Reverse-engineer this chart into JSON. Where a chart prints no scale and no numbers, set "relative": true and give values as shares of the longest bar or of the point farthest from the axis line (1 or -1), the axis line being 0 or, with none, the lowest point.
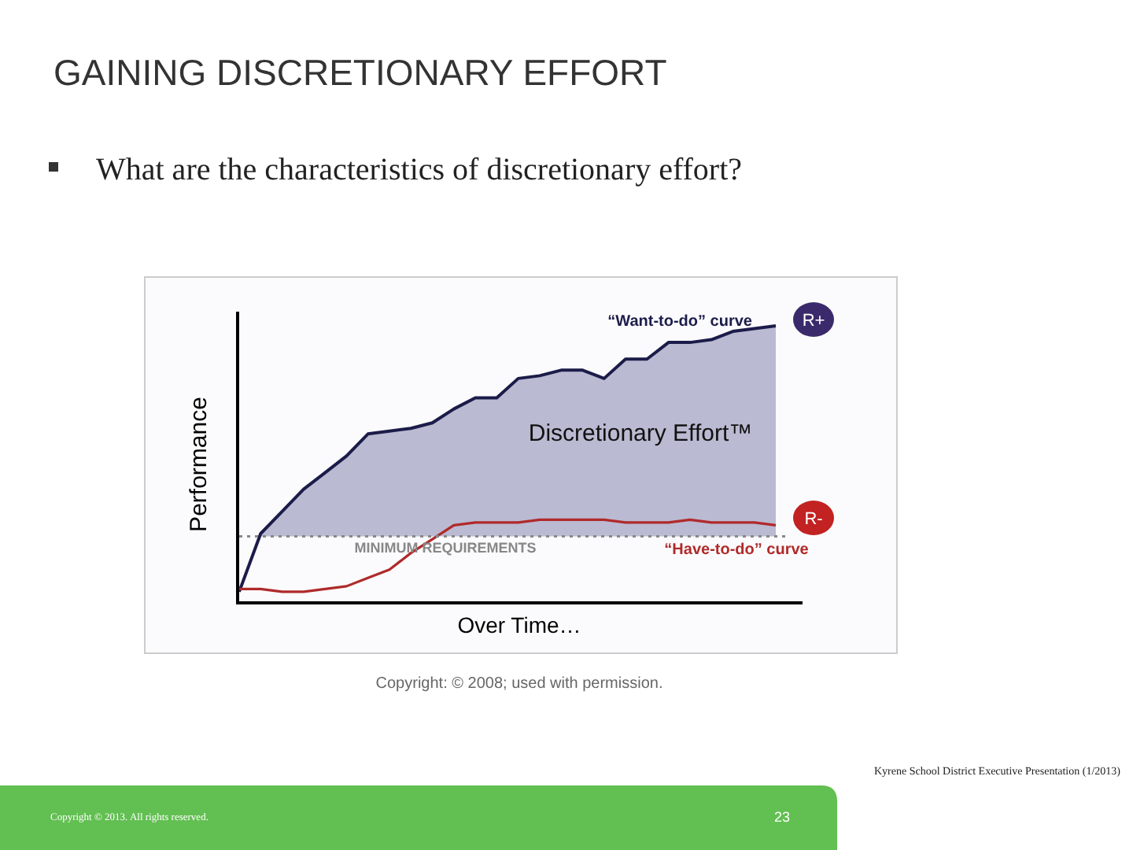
{
  "chart_data": {
    "type": "line",
    "title": "GAINING DISCRETIONARY EFFORT",
    "subtitle": "What are the characteristics of discretionary effort?",
    "xlabel": "Over Time…",
    "ylabel": "Performance",
    "relative": true,
    "categories": [
      null,
      null,
      null,
      null,
      null,
      null,
      null,
      null,
      null,
      null,
      null,
      null,
      null,
      null,
      null,
      null,
      null,
      null,
      null,
      null,
      null,
      null,
      null,
      null,
      null,
      null
    ],
    "series": [
      {
        "name": "“Want-to-do” curve",
        "type": "area",
        "color": "#1c1c4a",
        "values": [
          0.04,
          0.25,
          0.33,
          0.41,
          0.47,
          0.53,
          0.61,
          0.62,
          0.63,
          0.65,
          0.7,
          0.74,
          0.74,
          0.81,
          0.82,
          0.84,
          0.84,
          0.81,
          0.88,
          0.88,
          0.94,
          0.94,
          0.95,
          0.98,
          0.99,
          1.0
        ]
      },
      {
        "name": "“Have-to-do” curve",
        "color": "#b02a2a",
        "values": [
          0.05,
          0.05,
          0.04,
          0.04,
          0.05,
          0.06,
          0.09,
          0.12,
          0.18,
          0.23,
          0.28,
          0.29,
          0.29,
          0.29,
          0.3,
          0.3,
          0.3,
          0.3,
          0.29,
          0.29,
          0.29,
          0.3,
          0.29,
          0.29,
          0.29,
          0.28
        ]
      }
    ],
    "ref_lines": [
      {
        "axis": "y",
        "value": 0.24,
        "label": "MINIMUM REQUIREMENTS",
        "color": "#888888",
        "line_style": "dotted"
      }
    ],
    "annotations": [
      "Discretionary Effort™",
      "R+",
      "R-",
      "Copyright: © 2008; used with permission.",
      "Kyrene School District Executive Presentation (1/2013)",
      "Copyright © 2013. All rights reserved.",
      "23"
    ]
  }
}
